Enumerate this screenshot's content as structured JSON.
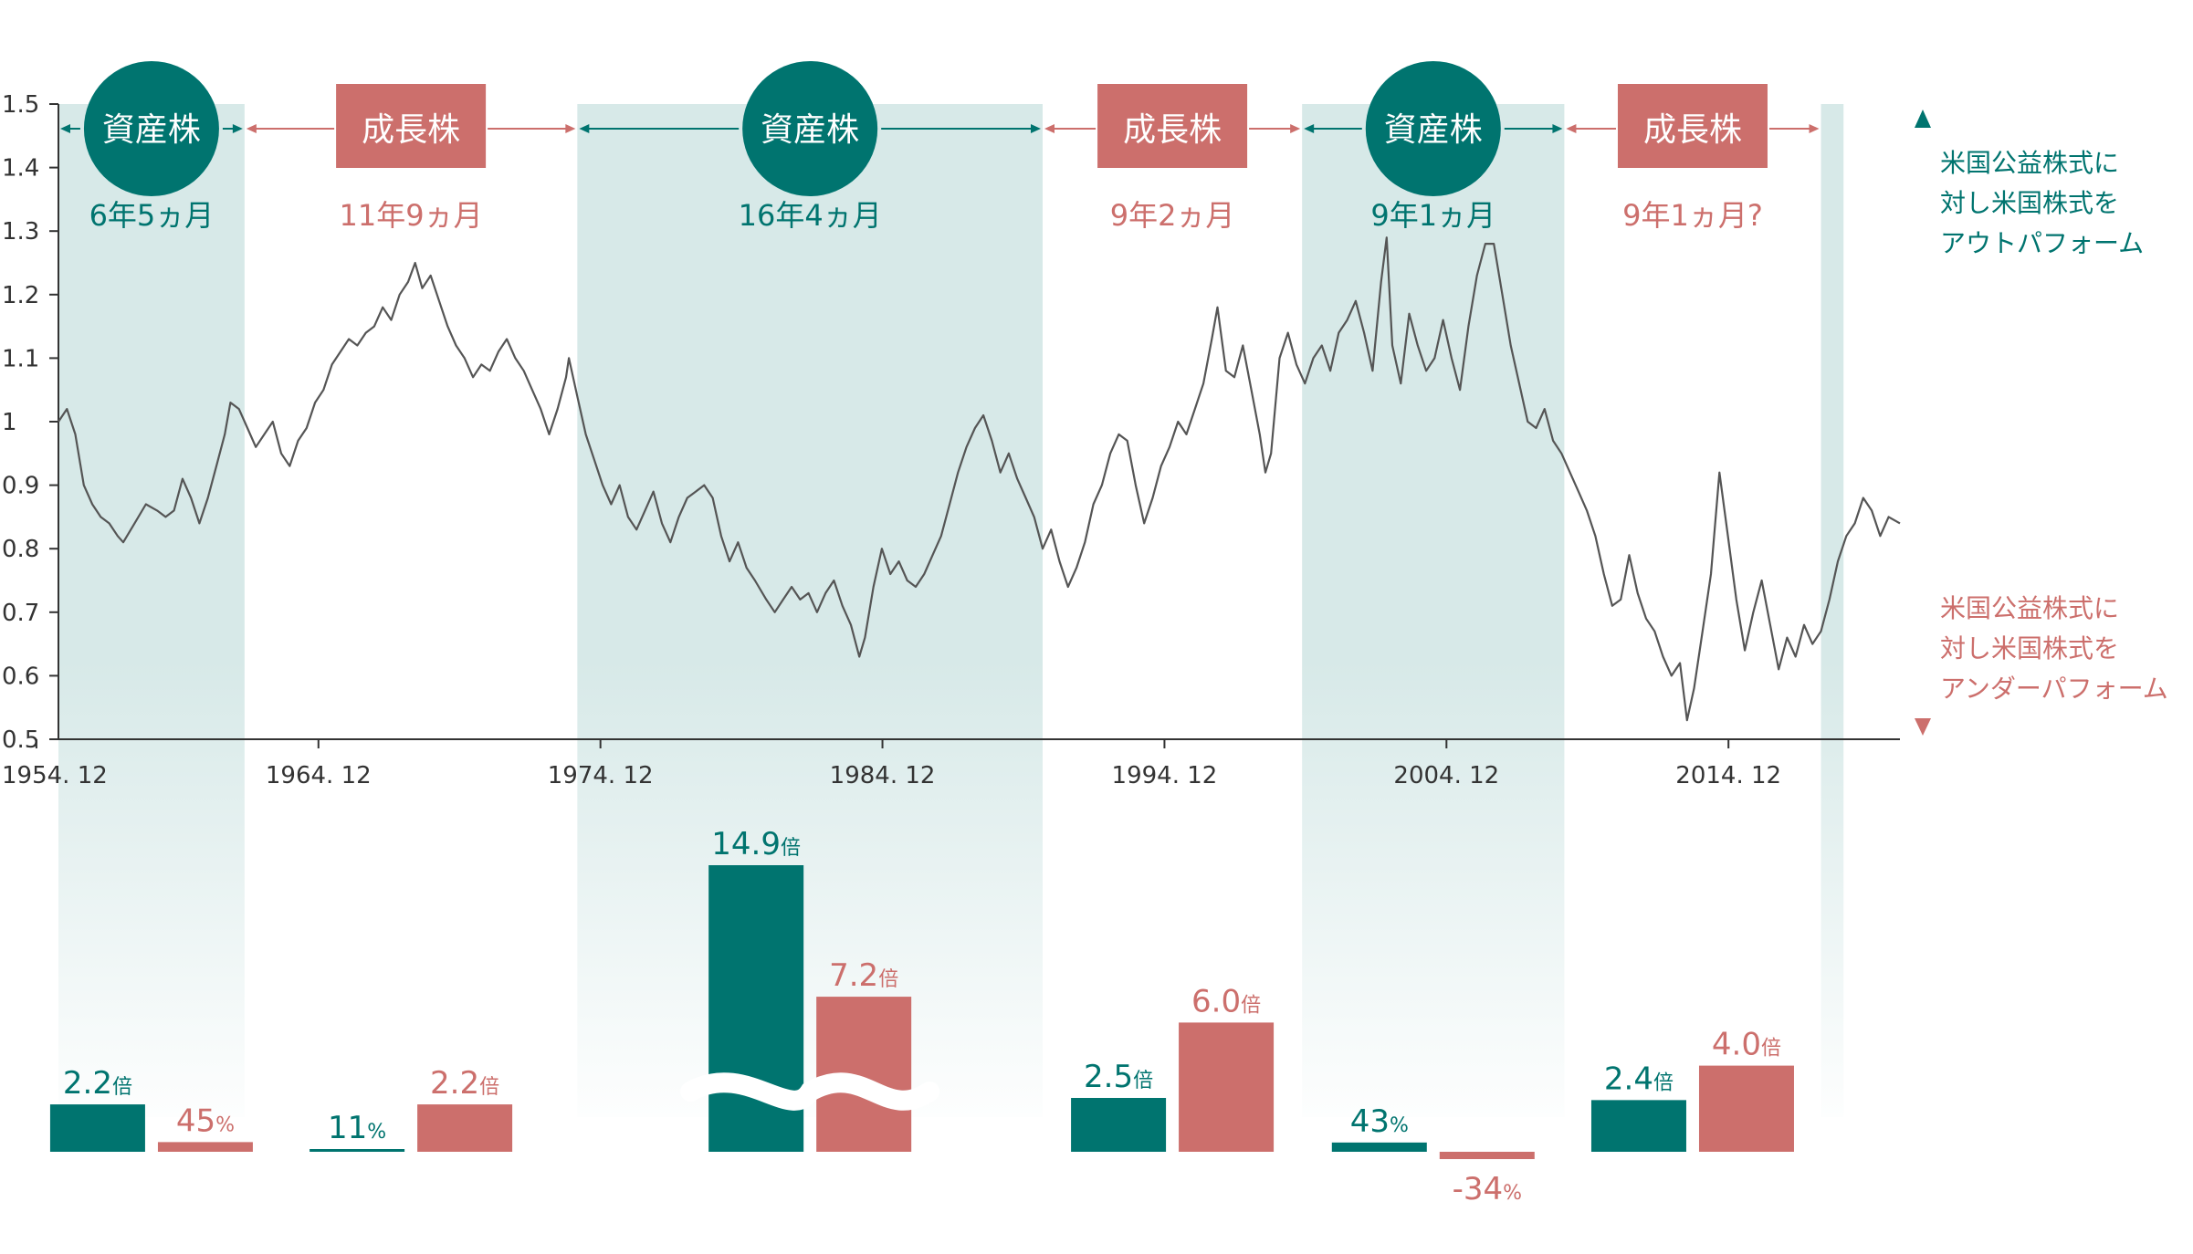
{
  "colors": {
    "value": "#00746f",
    "growth": "#cc6f6c",
    "band": "#d7e9e8",
    "line": "#555555",
    "axis": "#333333"
  },
  "legend": {
    "outperform": [
      "米国公益株式に",
      "対し米国株式を",
      "アウトパフォーム"
    ],
    "underperform": [
      "米国公益株式に",
      "対し米国株式を",
      "アンダーパフォーム"
    ]
  },
  "chart_data": [
    {
      "type": "line",
      "title": "",
      "xlabel": "",
      "ylabel": "",
      "x_ticks": [
        "1954. 12",
        "1964. 12",
        "1974. 12",
        "1984. 12",
        "1994. 12",
        "2004. 12",
        "2014. 12"
      ],
      "y_ticks": [
        "0.5",
        "0.6",
        "0.7",
        "0.8",
        "0.9",
        "1",
        "1.1",
        "1.2",
        "1.3",
        "1.4",
        "1.5"
      ],
      "ylim": [
        0.5,
        1.5
      ],
      "xlim": [
        1954.9,
        2020.2
      ],
      "grid": false,
      "series": [
        {
          "points": [
            [
              1954.9,
              1.0
            ],
            [
              1955.2,
              1.02
            ],
            [
              1955.5,
              0.98
            ],
            [
              1955.8,
              0.9
            ],
            [
              1956.1,
              0.87
            ],
            [
              1956.4,
              0.85
            ],
            [
              1956.7,
              0.84
            ],
            [
              1957.0,
              0.82
            ],
            [
              1957.2,
              0.81
            ],
            [
              1957.6,
              0.84
            ],
            [
              1958.0,
              0.87
            ],
            [
              1958.4,
              0.86
            ],
            [
              1958.7,
              0.85
            ],
            [
              1959.0,
              0.86
            ],
            [
              1959.3,
              0.91
            ],
            [
              1959.6,
              0.88
            ],
            [
              1959.9,
              0.84
            ],
            [
              1960.2,
              0.88
            ],
            [
              1960.5,
              0.93
            ],
            [
              1960.8,
              0.98
            ],
            [
              1961.0,
              1.03
            ],
            [
              1961.3,
              1.02
            ],
            [
              1961.6,
              0.99
            ],
            [
              1961.9,
              0.96
            ],
            [
              1962.2,
              0.98
            ],
            [
              1962.5,
              1.0
            ],
            [
              1962.8,
              0.95
            ],
            [
              1963.1,
              0.93
            ],
            [
              1963.4,
              0.97
            ],
            [
              1963.7,
              0.99
            ],
            [
              1964.0,
              1.03
            ],
            [
              1964.3,
              1.05
            ],
            [
              1964.6,
              1.09
            ],
            [
              1964.9,
              1.11
            ],
            [
              1965.2,
              1.13
            ],
            [
              1965.5,
              1.12
            ],
            [
              1965.8,
              1.14
            ],
            [
              1966.1,
              1.15
            ],
            [
              1966.4,
              1.18
            ],
            [
              1966.7,
              1.16
            ],
            [
              1967.0,
              1.2
            ],
            [
              1967.3,
              1.22
            ],
            [
              1967.55,
              1.25
            ],
            [
              1967.8,
              1.21
            ],
            [
              1968.1,
              1.23
            ],
            [
              1968.4,
              1.19
            ],
            [
              1968.7,
              1.15
            ],
            [
              1969.0,
              1.12
            ],
            [
              1969.3,
              1.1
            ],
            [
              1969.6,
              1.07
            ],
            [
              1969.9,
              1.09
            ],
            [
              1970.2,
              1.08
            ],
            [
              1970.5,
              1.11
            ],
            [
              1970.8,
              1.13
            ],
            [
              1971.1,
              1.1
            ],
            [
              1971.4,
              1.08
            ],
            [
              1971.7,
              1.05
            ],
            [
              1972.0,
              1.02
            ],
            [
              1972.3,
              0.98
            ],
            [
              1972.6,
              1.02
            ],
            [
              1972.9,
              1.07
            ],
            [
              1973.0,
              1.1
            ],
            [
              1973.3,
              1.04
            ],
            [
              1973.6,
              0.98
            ],
            [
              1973.9,
              0.94
            ],
            [
              1974.2,
              0.9
            ],
            [
              1974.5,
              0.87
            ],
            [
              1974.8,
              0.9
            ],
            [
              1975.1,
              0.85
            ],
            [
              1975.4,
              0.83
            ],
            [
              1975.7,
              0.86
            ],
            [
              1976.0,
              0.89
            ],
            [
              1976.3,
              0.84
            ],
            [
              1976.6,
              0.81
            ],
            [
              1976.9,
              0.85
            ],
            [
              1977.2,
              0.88
            ],
            [
              1977.5,
              0.89
            ],
            [
              1977.8,
              0.9
            ],
            [
              1978.1,
              0.88
            ],
            [
              1978.4,
              0.82
            ],
            [
              1978.7,
              0.78
            ],
            [
              1979.0,
              0.81
            ],
            [
              1979.3,
              0.77
            ],
            [
              1979.6,
              0.75
            ],
            [
              1980.0,
              0.72
            ],
            [
              1980.3,
              0.7
            ],
            [
              1980.6,
              0.72
            ],
            [
              1980.9,
              0.74
            ],
            [
              1981.2,
              0.72
            ],
            [
              1981.5,
              0.73
            ],
            [
              1981.8,
              0.7
            ],
            [
              1982.1,
              0.73
            ],
            [
              1982.4,
              0.75
            ],
            [
              1982.7,
              0.71
            ],
            [
              1983.0,
              0.68
            ],
            [
              1983.3,
              0.63
            ],
            [
              1983.5,
              0.66
            ],
            [
              1983.8,
              0.74
            ],
            [
              1984.1,
              0.8
            ],
            [
              1984.4,
              0.76
            ],
            [
              1984.7,
              0.78
            ],
            [
              1985.0,
              0.75
            ],
            [
              1985.3,
              0.74
            ],
            [
              1985.6,
              0.76
            ],
            [
              1985.9,
              0.79
            ],
            [
              1986.2,
              0.82
            ],
            [
              1986.5,
              0.87
            ],
            [
              1986.8,
              0.92
            ],
            [
              1987.1,
              0.96
            ],
            [
              1987.4,
              0.99
            ],
            [
              1987.7,
              1.01
            ],
            [
              1988.0,
              0.97
            ],
            [
              1988.3,
              0.92
            ],
            [
              1988.6,
              0.95
            ],
            [
              1988.9,
              0.91
            ],
            [
              1989.2,
              0.88
            ],
            [
              1989.5,
              0.85
            ],
            [
              1989.8,
              0.8
            ],
            [
              1990.1,
              0.83
            ],
            [
              1990.4,
              0.78
            ],
            [
              1990.7,
              0.74
            ],
            [
              1991.0,
              0.77
            ],
            [
              1991.3,
              0.81
            ],
            [
              1991.6,
              0.87
            ],
            [
              1991.9,
              0.9
            ],
            [
              1992.2,
              0.95
            ],
            [
              1992.5,
              0.98
            ],
            [
              1992.8,
              0.97
            ],
            [
              1993.1,
              0.9
            ],
            [
              1993.4,
              0.84
            ],
            [
              1993.7,
              0.88
            ],
            [
              1994.0,
              0.93
            ],
            [
              1994.3,
              0.96
            ],
            [
              1994.6,
              1.0
            ],
            [
              1994.9,
              0.98
            ],
            [
              1995.2,
              1.02
            ],
            [
              1995.5,
              1.06
            ],
            [
              1995.8,
              1.13
            ],
            [
              1996.0,
              1.18
            ],
            [
              1996.3,
              1.08
            ],
            [
              1996.6,
              1.07
            ],
            [
              1996.9,
              1.12
            ],
            [
              1997.2,
              1.05
            ],
            [
              1997.5,
              0.98
            ],
            [
              1997.7,
              0.92
            ],
            [
              1997.9,
              0.95
            ],
            [
              1998.2,
              1.1
            ],
            [
              1998.5,
              1.14
            ],
            [
              1998.8,
              1.09
            ],
            [
              1999.1,
              1.06
            ],
            [
              1999.4,
              1.1
            ],
            [
              1999.7,
              1.12
            ],
            [
              2000.0,
              1.08
            ],
            [
              2000.3,
              1.14
            ],
            [
              2000.6,
              1.16
            ],
            [
              2000.9,
              1.19
            ],
            [
              2001.2,
              1.14
            ],
            [
              2001.5,
              1.08
            ],
            [
              2001.8,
              1.22
            ],
            [
              2002.0,
              1.29
            ],
            [
              2002.2,
              1.12
            ],
            [
              2002.5,
              1.06
            ],
            [
              2002.8,
              1.17
            ],
            [
              2003.1,
              1.12
            ],
            [
              2003.4,
              1.08
            ],
            [
              2003.7,
              1.1
            ],
            [
              2004.0,
              1.16
            ],
            [
              2004.3,
              1.1
            ],
            [
              2004.6,
              1.05
            ],
            [
              2004.9,
              1.15
            ],
            [
              2005.2,
              1.23
            ],
            [
              2005.5,
              1.28
            ],
            [
              2005.8,
              1.28
            ],
            [
              2006.1,
              1.2
            ],
            [
              2006.4,
              1.12
            ],
            [
              2006.7,
              1.06
            ],
            [
              2007.0,
              1.0
            ],
            [
              2007.3,
              0.99
            ],
            [
              2007.6,
              1.02
            ],
            [
              2007.9,
              0.97
            ],
            [
              2008.2,
              0.95
            ],
            [
              2008.5,
              0.92
            ],
            [
              2008.8,
              0.89
            ],
            [
              2009.1,
              0.86
            ],
            [
              2009.4,
              0.82
            ],
            [
              2009.7,
              0.76
            ],
            [
              2010.0,
              0.71
            ],
            [
              2010.3,
              0.72
            ],
            [
              2010.6,
              0.79
            ],
            [
              2010.9,
              0.73
            ],
            [
              2011.2,
              0.69
            ],
            [
              2011.5,
              0.67
            ],
            [
              2011.8,
              0.63
            ],
            [
              2012.1,
              0.6
            ],
            [
              2012.4,
              0.62
            ],
            [
              2012.65,
              0.53
            ],
            [
              2012.9,
              0.58
            ],
            [
              2013.2,
              0.67
            ],
            [
              2013.5,
              0.76
            ],
            [
              2013.8,
              0.92
            ],
            [
              2014.1,
              0.82
            ],
            [
              2014.4,
              0.72
            ],
            [
              2014.7,
              0.64
            ],
            [
              2015.0,
              0.7
            ],
            [
              2015.3,
              0.75
            ],
            [
              2015.6,
              0.68
            ],
            [
              2015.9,
              0.61
            ],
            [
              2016.2,
              0.66
            ],
            [
              2016.5,
              0.63
            ],
            [
              2016.8,
              0.68
            ],
            [
              2017.1,
              0.65
            ],
            [
              2017.4,
              0.67
            ],
            [
              2017.7,
              0.72
            ],
            [
              2018.0,
              0.78
            ],
            [
              2018.3,
              0.82
            ],
            [
              2018.6,
              0.84
            ],
            [
              2018.9,
              0.88
            ],
            [
              2019.2,
              0.86
            ],
            [
              2019.5,
              0.82
            ],
            [
              2019.8,
              0.85
            ],
            [
              2020.2,
              0.84
            ]
          ]
        }
      ]
    }
  ],
  "eras": [
    {
      "kind": "value",
      "label": "資産株",
      "duration": "6年5ヵ月",
      "highlighted": true,
      "x_start": 1954.9,
      "x_end": 1961.5,
      "bar_value": {
        "value": 2.2,
        "num": "2.2",
        "unit": "倍"
      },
      "bar_growth": {
        "value": 0.45,
        "num": "45",
        "unit": "%"
      }
    },
    {
      "kind": "growth",
      "label": "成長株",
      "duration": "11年9ヵ月",
      "highlighted": false,
      "x_start": 1961.5,
      "x_end": 1973.3,
      "bar_value": {
        "value": 0.11,
        "num": "11",
        "unit": "%"
      },
      "bar_growth": {
        "value": 2.2,
        "num": "2.2",
        "unit": "倍"
      }
    },
    {
      "kind": "value",
      "label": "資産株",
      "duration": "16年4ヵ月",
      "highlighted": true,
      "x_start": 1973.3,
      "x_end": 1989.8,
      "bar_value": {
        "value": 14.9,
        "num": "14.9",
        "unit": "倍"
      },
      "bar_growth": {
        "value": 7.2,
        "num": "7.2",
        "unit": "倍"
      }
    },
    {
      "kind": "growth",
      "label": "成長株",
      "duration": "9年2ヵ月",
      "highlighted": false,
      "x_start": 1989.8,
      "x_end": 1999.0,
      "bar_value": {
        "value": 2.5,
        "num": "2.5",
        "unit": "倍"
      },
      "bar_growth": {
        "value": 6.0,
        "num": "6.0",
        "unit": "倍"
      }
    },
    {
      "kind": "value",
      "label": "資産株",
      "duration": "9年1ヵ月",
      "highlighted": true,
      "x_start": 1999.0,
      "x_end": 2008.3,
      "bar_value": {
        "value": 0.43,
        "num": "43",
        "unit": "%"
      },
      "bar_growth": {
        "value": -0.34,
        "num": "-34",
        "unit": "%"
      }
    },
    {
      "kind": "growth",
      "label": "成長株",
      "duration": "9年1ヵ月?",
      "highlighted": false,
      "x_start": 2008.3,
      "x_end": 2017.4,
      "bar_value": {
        "value": 2.4,
        "num": "2.4",
        "unit": "倍"
      },
      "bar_growth": {
        "value": 4.0,
        "num": "4.0",
        "unit": "倍"
      }
    }
  ],
  "current_band": {
    "highlighted": true,
    "x_start": 2017.4,
    "x_end": 2018.2
  }
}
